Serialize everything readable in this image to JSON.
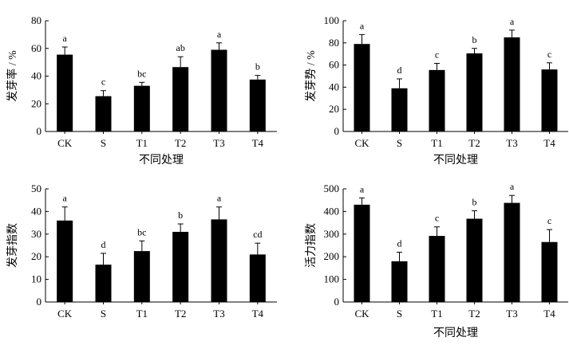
{
  "chart_data": [
    {
      "type": "bar",
      "xlabel": "不同处理",
      "ylabel": "发芽率 / %",
      "ylim": [
        0,
        80
      ],
      "yticks": [
        0,
        20,
        40,
        60,
        80
      ],
      "categories": [
        "CK",
        "S",
        "T1",
        "T2",
        "T3",
        "T4"
      ],
      "values": [
        55.5,
        25.5,
        33,
        46.5,
        59,
        37.5
      ],
      "errors": [
        5.5,
        4,
        2.5,
        7.5,
        5,
        3
      ],
      "labels": [
        "a",
        "c",
        "bc",
        "ab",
        "a",
        "b"
      ],
      "bar_color": "#000000"
    },
    {
      "type": "bar",
      "xlabel": "不同处理",
      "ylabel": "发芽势 / %",
      "ylim": [
        0,
        100
      ],
      "yticks": [
        0,
        20,
        40,
        60,
        80,
        100
      ],
      "categories": [
        "CK",
        "S",
        "T1",
        "T2",
        "T3",
        "T4"
      ],
      "values": [
        79,
        39,
        55.5,
        70.5,
        85,
        56
      ],
      "errors": [
        8.5,
        8.5,
        6,
        4.5,
        6.5,
        6
      ],
      "labels": [
        "a",
        "d",
        "c",
        "b",
        "a",
        "c"
      ],
      "bar_color": "#000000"
    },
    {
      "type": "bar",
      "xlabel": "",
      "ylabel": "发芽指数",
      "ylim": [
        0,
        50
      ],
      "yticks": [
        0,
        10,
        20,
        30,
        40,
        50
      ],
      "categories": [
        "CK",
        "S",
        "T1",
        "T2",
        "T3",
        "T4"
      ],
      "values": [
        36,
        16.5,
        22.5,
        31,
        36.5,
        21
      ],
      "errors": [
        6,
        5,
        4.5,
        3.5,
        5.5,
        5
      ],
      "labels": [
        "a",
        "d",
        "bc",
        "b",
        "a",
        "cd"
      ],
      "bar_color": "#000000"
    },
    {
      "type": "bar",
      "xlabel": "不同处理",
      "ylabel": "活力指数",
      "ylim": [
        0,
        500
      ],
      "yticks": [
        0,
        100,
        200,
        300,
        400,
        500
      ],
      "categories": [
        "CK",
        "S",
        "T1",
        "T2",
        "T3",
        "T4"
      ],
      "values": [
        430,
        180,
        292,
        368,
        438,
        265
      ],
      "errors": [
        30,
        40,
        40,
        35,
        33,
        55
      ],
      "labels": [
        "a",
        "d",
        "c",
        "b",
        "a",
        "c"
      ],
      "bar_color": "#000000"
    }
  ]
}
